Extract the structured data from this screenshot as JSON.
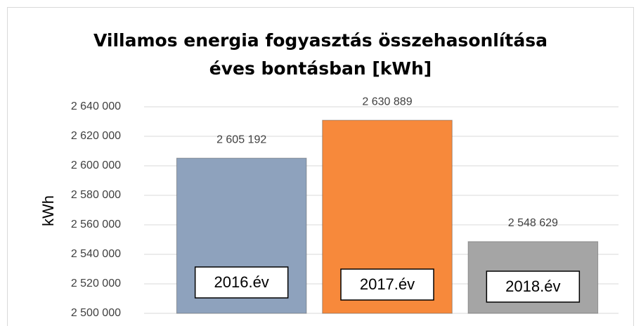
{
  "chart_data": {
    "type": "bar",
    "title": "Villamos energia fogyasztás összehasonlítása éves bontásban [kWh]",
    "y_label": "kWh",
    "categories": [
      "2016.év",
      "2017.év",
      "2018.év"
    ],
    "values": [
      2605192,
      2630889,
      2548629
    ],
    "value_labels": [
      "2 605 192",
      "2 630 889",
      "2 548 629"
    ],
    "colors": [
      "#8ea2bd",
      "#f7893b",
      "#a5a5a5"
    ],
    "ylim": [
      2500000,
      2640000
    ],
    "yticks": [
      {
        "value": 2500000,
        "label": "2 500 000"
      },
      {
        "value": 2520000,
        "label": "2 520 000"
      },
      {
        "value": 2540000,
        "label": "2 540 000"
      },
      {
        "value": 2560000,
        "label": "2 560 000"
      },
      {
        "value": 2580000,
        "label": "2 580 000"
      },
      {
        "value": 2600000,
        "label": "2 600 000"
      },
      {
        "value": 2620000,
        "label": "2 620 000"
      },
      {
        "value": 2640000,
        "label": "2 640 000"
      }
    ],
    "grid": true
  }
}
